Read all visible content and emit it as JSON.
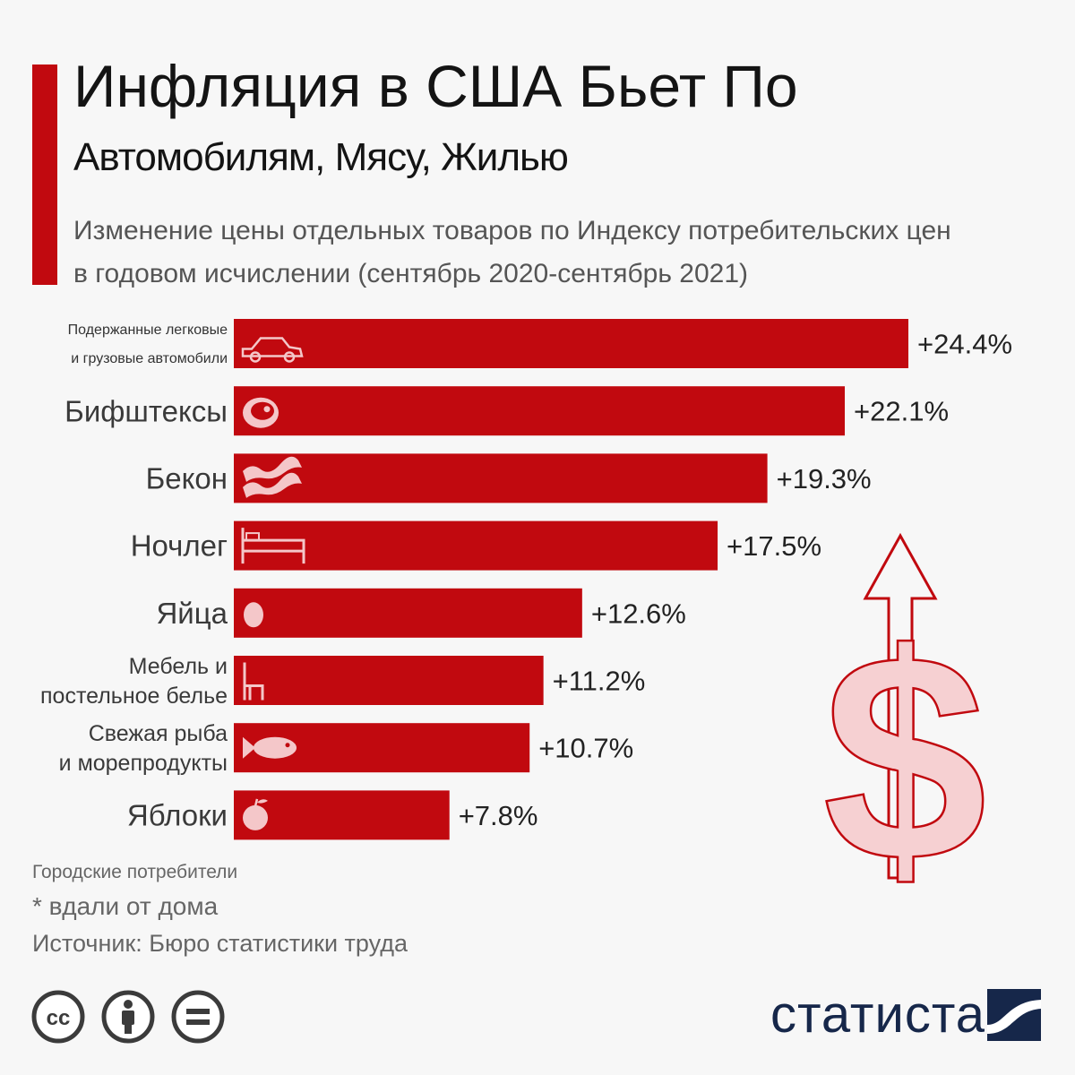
{
  "header": {
    "title": "Инфляция в США Бьет По",
    "subtitle": "Автомобилям, Мясу, Жилью",
    "description": "Изменение цены отдельных товаров по Индексу потребительских цен в годовом исчислении (сентябрь 2020-сентябрь 2021)"
  },
  "chart_data": {
    "type": "bar",
    "orientation": "horizontal",
    "unit": "%",
    "categories": [
      [
        "Подержанные легковые",
        "и грузовые автомобили"
      ],
      [
        "Бифштексы"
      ],
      [
        "Бекон"
      ],
      [
        "Ночлег"
      ],
      [
        "Яйца"
      ],
      [
        "Мебель и",
        "постельное белье"
      ],
      [
        "Свежая рыба",
        "и морепродукты"
      ],
      [
        "Яблоки"
      ]
    ],
    "values": [
      24.4,
      22.1,
      19.3,
      17.5,
      12.6,
      11.2,
      10.7,
      7.8
    ],
    "value_labels": [
      "+24.4%",
      "+22.1%",
      "+19.3%",
      "+17.5%",
      "+12.6%",
      "+11.2%",
      "+10.7%",
      "+7.8%"
    ],
    "icons": [
      "car-icon",
      "steak-icon",
      "bacon-icon",
      "bed-icon",
      "egg-icon",
      "chair-icon",
      "fish-icon",
      "apple-icon"
    ],
    "bar_color": "#c1090f",
    "xlim": [
      0,
      24.4
    ],
    "grid": false,
    "legend": "none"
  },
  "decoration": {
    "icon": "dollar-up-arrow-icon",
    "color": "#c1090f"
  },
  "footer": {
    "note_urban": "Городские потребители",
    "note_lodging": "* вдали от дома",
    "source": "Источник: Бюро статистики труда",
    "license_icons": [
      "cc-icon",
      "attribution-icon",
      "no-derivatives-icon"
    ],
    "logo_text": "статиста"
  },
  "colors": {
    "accent": "#c1090f",
    "logo": "#16274a"
  }
}
